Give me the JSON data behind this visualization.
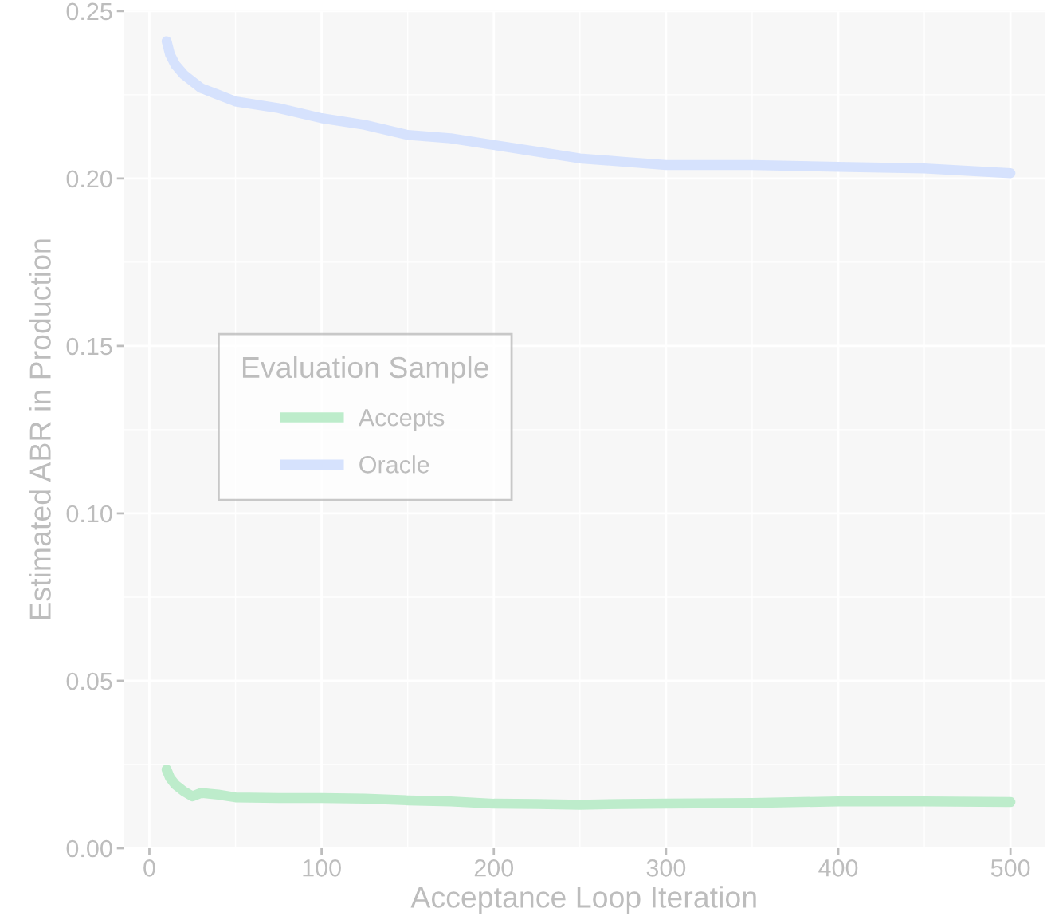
{
  "chart_data": {
    "type": "line",
    "xlabel": "Acceptance Loop Iteration",
    "ylabel": "Estimated ABR in Production",
    "legend_title": "Evaluation Sample",
    "legend": "left",
    "x": [
      10,
      12,
      15,
      20,
      25,
      30,
      40,
      50,
      75,
      100,
      125,
      150,
      175,
      200,
      225,
      250,
      275,
      300,
      350,
      400,
      450,
      500
    ],
    "series": [
      {
        "name": "Accepts",
        "color": "#bdeccb",
        "values": [
          0.0235,
          0.021,
          0.019,
          0.017,
          0.0155,
          0.0165,
          0.016,
          0.0152,
          0.015,
          0.015,
          0.0148,
          0.0143,
          0.014,
          0.0133,
          0.0132,
          0.013,
          0.0132,
          0.0133,
          0.0135,
          0.014,
          0.014,
          0.0138
        ]
      },
      {
        "name": "Oracle",
        "color": "#d6e2fd",
        "values": [
          0.241,
          0.237,
          0.234,
          0.231,
          0.229,
          0.227,
          0.225,
          0.223,
          0.221,
          0.218,
          0.216,
          0.213,
          0.212,
          0.21,
          0.208,
          0.206,
          0.205,
          0.204,
          0.204,
          0.2035,
          0.203,
          0.2016
        ]
      }
    ],
    "xlim": [
      -15,
      520
    ],
    "ylim": [
      0,
      0.25
    ],
    "xticks": [
      0,
      100,
      200,
      300,
      400,
      500
    ],
    "yticks": [
      {
        "value": 0,
        "label": "0.00"
      },
      {
        "value": 0.05,
        "label": "0.05"
      },
      {
        "value": 0.1,
        "label": "0.10"
      },
      {
        "value": 0.15,
        "label": "0.15"
      },
      {
        "value": 0.2,
        "label": "0.20"
      },
      {
        "value": 0.25,
        "label": "0.25"
      }
    ],
    "grid": true
  }
}
